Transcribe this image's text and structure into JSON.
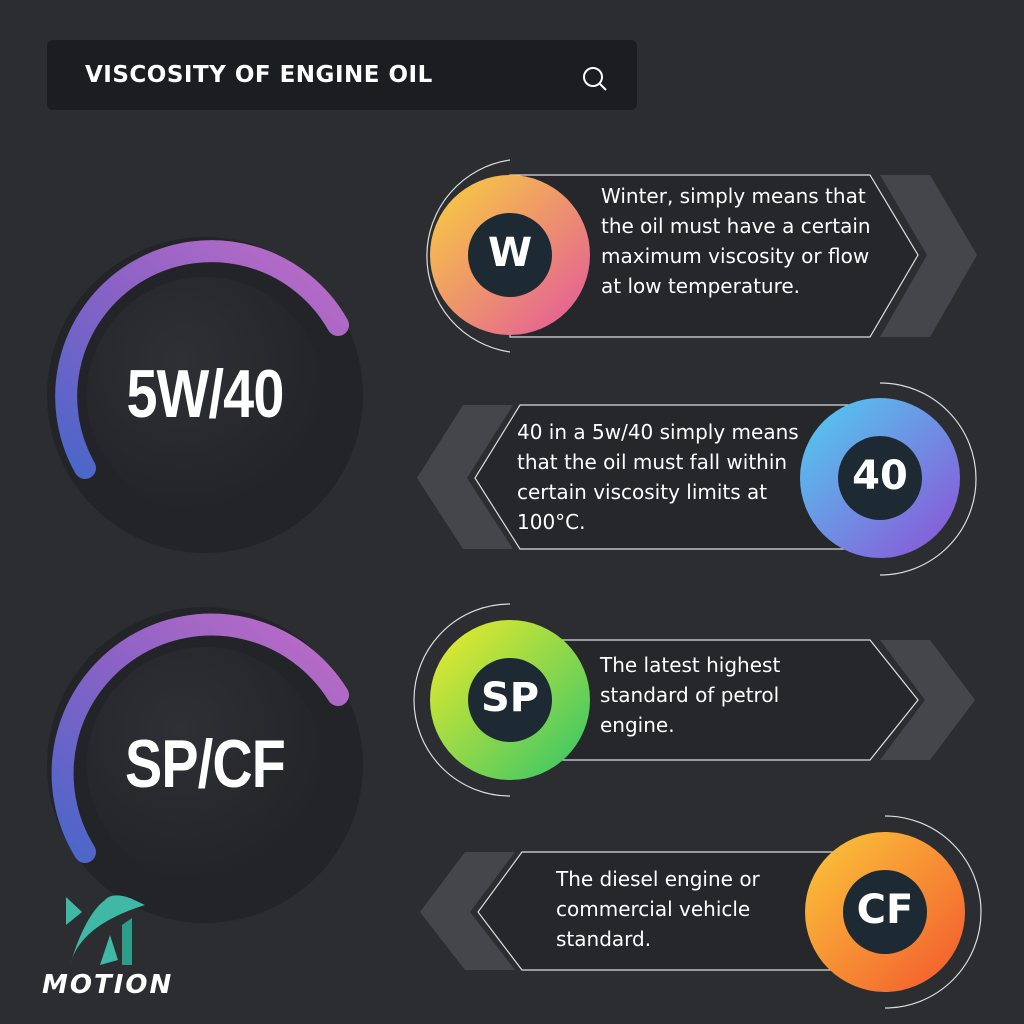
{
  "header": {
    "title": "VISCOSITY OF ENGINE OIL",
    "icon": "search-icon"
  },
  "gauges": [
    {
      "label": "5W/40"
    },
    {
      "label": "SP/CF"
    }
  ],
  "cards": [
    {
      "badge": "W",
      "text": "Winter, simply means that the oil must have a certain maximum viscosity or flow at low temperature.",
      "gradient": [
        "#f9d23c",
        "#e2559e"
      ]
    },
    {
      "badge": "40",
      "text": "40 in a 5w/40 simply means that the oil must fall within certain viscosity limits at 100°C.",
      "gradient": [
        "#4fd0f0",
        "#8e4fd6"
      ]
    },
    {
      "badge": "SP",
      "text": "The latest highest standard of petrol engine.",
      "gradient": [
        "#f2ec2a",
        "#2fc46a"
      ]
    },
    {
      "badge": "CF",
      "text": "The diesel engine or commercial vehicle standard.",
      "gradient": [
        "#fbc93a",
        "#f2562e"
      ]
    }
  ],
  "brand": {
    "name": "MOTION",
    "color": "#3fb9a5"
  },
  "colors": {
    "background": "#2b2d31",
    "gauge_arc_start": "#4a66c9",
    "gauge_arc_end": "#b86bc9"
  }
}
